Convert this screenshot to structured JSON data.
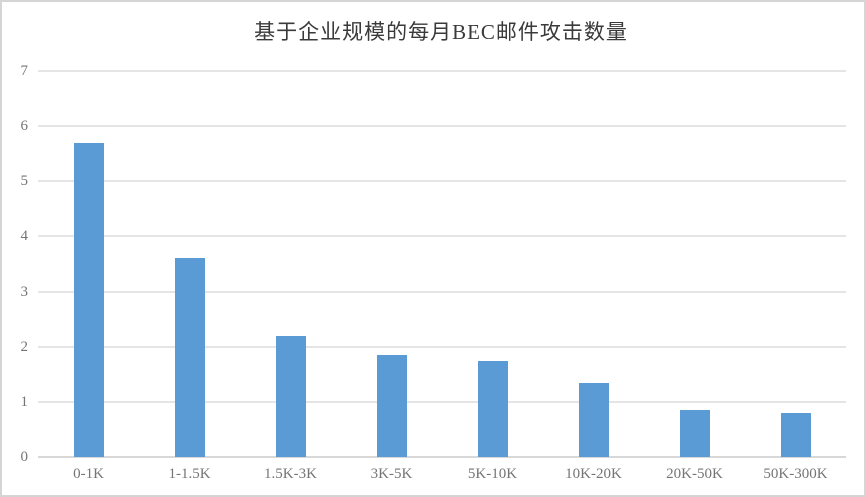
{
  "chart_data": {
    "type": "bar",
    "title": "基于企业规模的每月BEC邮件攻击数量",
    "categories": [
      "0-1K",
      "1-1.5K",
      "1.5K-3K",
      "3K-5K",
      "5K-10K",
      "10K-20K",
      "20K-50K",
      "50K-300K"
    ],
    "values": [
      5.7,
      3.6,
      2.2,
      1.85,
      1.75,
      1.35,
      0.85,
      0.8
    ],
    "series_name": "每月BEC邮件攻击数量",
    "xlabel": "",
    "ylabel": "",
    "ylim": [
      0,
      7
    ],
    "yticks": [
      0,
      1,
      2,
      3,
      4,
      5,
      6,
      7
    ],
    "grid": true,
    "legend_position": "none",
    "bar_color": "#5B9BD5",
    "gridline_color": "#e5e5e5",
    "axis_line_color": "#d8d8d8",
    "tick_label_color": "#757575",
    "title_color": "#3a3a3a",
    "frame_border_color": "#d5d5d5"
  }
}
